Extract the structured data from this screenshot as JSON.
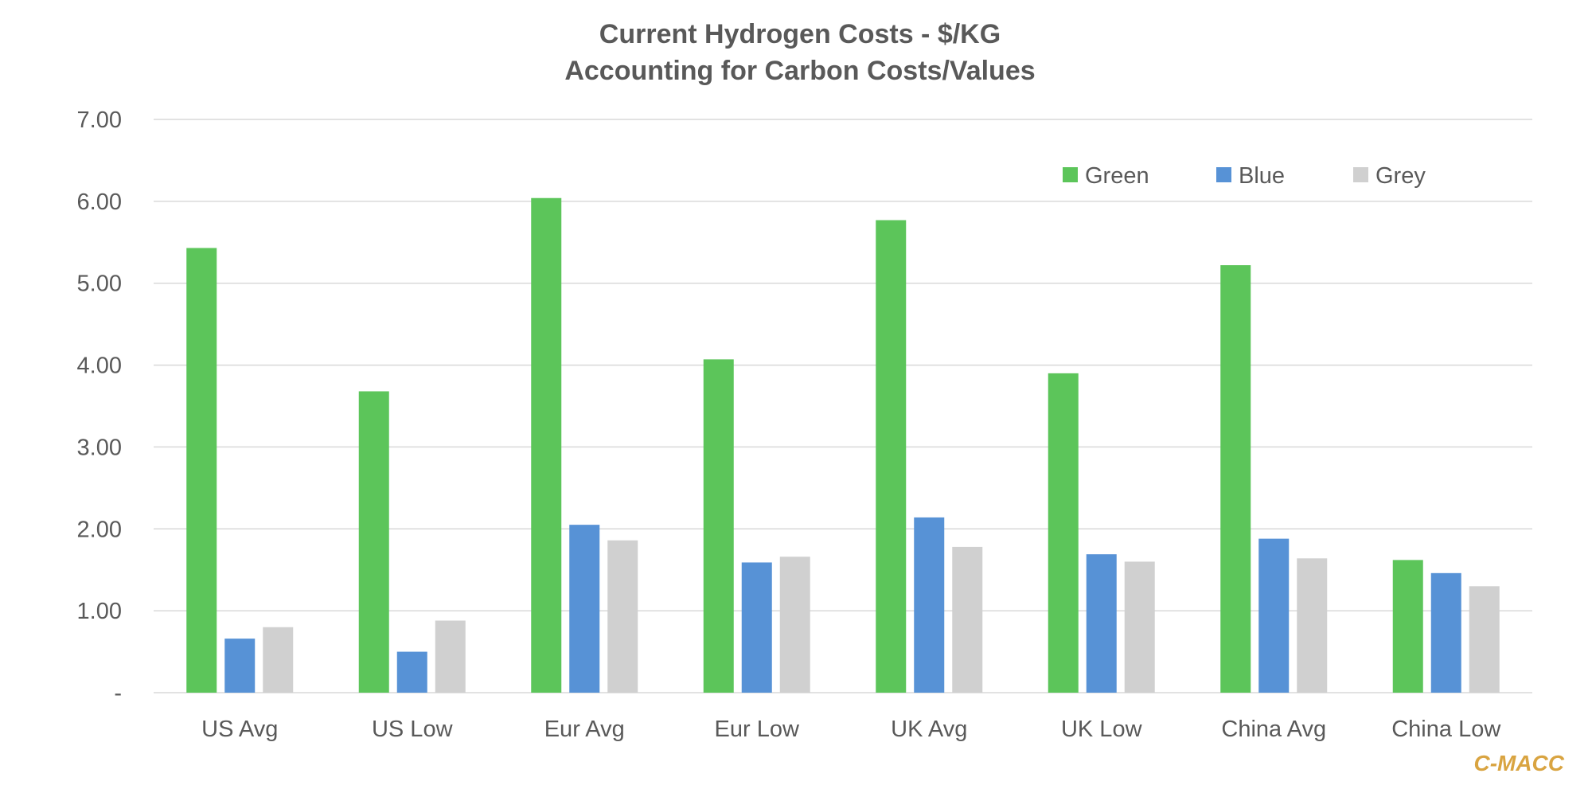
{
  "chart_data": {
    "type": "bar",
    "title": "Current Hydrogen Costs - $/KG",
    "subtitle": "Accounting for Carbon Costs/Values",
    "xlabel": "",
    "ylabel": "",
    "ylim": [
      0,
      7
    ],
    "grid": true,
    "legend_position": "top-right",
    "y_tick_labels": [
      "-",
      "1.00",
      "2.00",
      "3.00",
      "4.00",
      "5.00",
      "6.00",
      "7.00"
    ],
    "categories": [
      "US Avg",
      "US Low",
      "Eur Avg",
      "Eur Low",
      "UK Avg",
      "UK Low",
      "China Avg",
      "China Low"
    ],
    "series": [
      {
        "name": "Green",
        "color": "#5CC55A",
        "values": [
          5.43,
          3.68,
          6.04,
          4.07,
          5.77,
          3.9,
          5.22,
          1.62
        ]
      },
      {
        "name": "Blue",
        "color": "#5792D6",
        "values": [
          0.66,
          0.5,
          2.05,
          1.59,
          2.14,
          1.69,
          1.88,
          1.46
        ]
      },
      {
        "name": "Grey",
        "color": "#D0D0D0",
        "values": [
          0.8,
          0.88,
          1.86,
          1.66,
          1.78,
          1.6,
          1.64,
          1.3
        ]
      }
    ]
  },
  "watermark": "C-MACC"
}
